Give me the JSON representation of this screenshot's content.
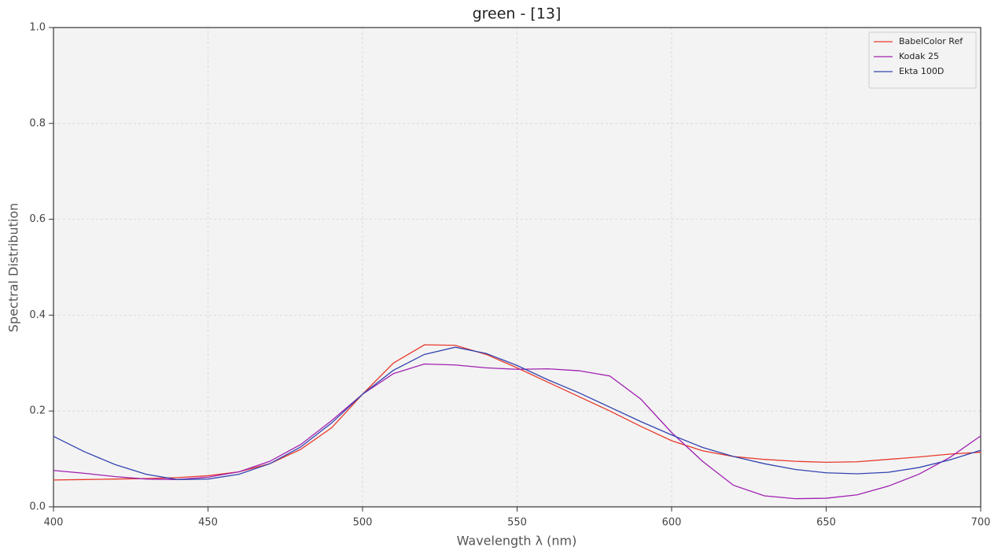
{
  "chart_data": {
    "type": "line",
    "title": "green - [13]",
    "x_label": "Wavelength λ (nm)",
    "y_label": "Spectral Distribution",
    "x": [
      400,
      410,
      420,
      430,
      440,
      450,
      460,
      470,
      480,
      490,
      500,
      510,
      520,
      530,
      540,
      550,
      560,
      570,
      580,
      590,
      600,
      610,
      620,
      630,
      640,
      650,
      660,
      670,
      680,
      690,
      700
    ],
    "series": [
      {
        "name": "BabelColor Ref",
        "color": "#e8392b",
        "values": [
          0.056,
          0.057,
          0.058,
          0.059,
          0.061,
          0.065,
          0.073,
          0.09,
          0.12,
          0.165,
          0.235,
          0.3,
          0.338,
          0.337,
          0.318,
          0.29,
          0.26,
          0.23,
          0.2,
          0.168,
          0.138,
          0.117,
          0.105,
          0.099,
          0.095,
          0.093,
          0.094,
          0.099,
          0.104,
          0.11,
          0.114
        ]
      },
      {
        "name": "Kodak 25",
        "color": "#a020b0",
        "values": [
          0.076,
          0.07,
          0.063,
          0.058,
          0.057,
          0.062,
          0.073,
          0.095,
          0.13,
          0.18,
          0.235,
          0.278,
          0.298,
          0.296,
          0.29,
          0.287,
          0.288,
          0.284,
          0.273,
          0.225,
          0.155,
          0.095,
          0.045,
          0.023,
          0.017,
          0.018,
          0.025,
          0.043,
          0.068,
          0.103,
          0.148
        ]
      },
      {
        "name": "Ekta 100D",
        "color": "#3344b0",
        "values": [
          0.147,
          0.115,
          0.088,
          0.068,
          0.057,
          0.058,
          0.068,
          0.09,
          0.125,
          0.175,
          0.235,
          0.285,
          0.318,
          0.333,
          0.32,
          0.295,
          0.265,
          0.238,
          0.208,
          0.178,
          0.15,
          0.124,
          0.105,
          0.09,
          0.078,
          0.071,
          0.069,
          0.072,
          0.082,
          0.098,
          0.118
        ]
      }
    ],
    "xlim": [
      400,
      700
    ],
    "xticks": [
      400,
      450,
      500,
      550,
      600,
      650,
      700
    ],
    "ylim": [
      0,
      1
    ],
    "yticks": [
      {
        "value": 0,
        "label": "0.0"
      },
      0.2,
      0.4,
      0.6,
      0.8,
      {
        "value": 1,
        "label": "1.0"
      }
    ],
    "grid": true,
    "legend": "upper right"
  }
}
